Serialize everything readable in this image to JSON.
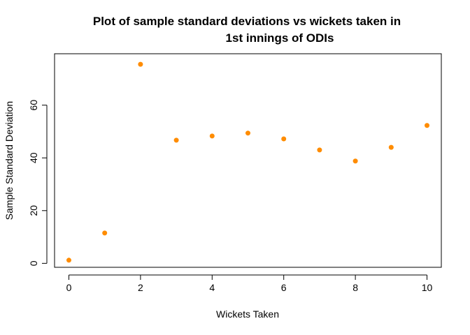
{
  "chart_data": {
    "type": "scatter",
    "title_lines": [
      "Plot of sample standard deviations vs wickets taken in",
      "1st innings of ODIs"
    ],
    "xlabel": "Wickets Taken",
    "ylabel": "Sample Standard Deviation",
    "xlim": [
      -0.4,
      10.4
    ],
    "ylim": [
      -1.5,
      79.5
    ],
    "x_ticks": [
      0,
      2,
      4,
      6,
      8,
      10
    ],
    "y_ticks": [
      0,
      20,
      40,
      60
    ],
    "x_tick_labels": [
      "0",
      "2",
      "4",
      "6",
      "8",
      "10"
    ],
    "y_tick_labels": [
      "0",
      "20",
      "40",
      "60"
    ],
    "grid": false,
    "point_color": "#FF8C00",
    "points": [
      {
        "x": 0,
        "y": 1.2
      },
      {
        "x": 1,
        "y": 11.5
      },
      {
        "x": 2,
        "y": 75.5
      },
      {
        "x": 3,
        "y": 46.7
      },
      {
        "x": 4,
        "y": 48.3
      },
      {
        "x": 5,
        "y": 49.4
      },
      {
        "x": 6,
        "y": 47.2
      },
      {
        "x": 7,
        "y": 43.0
      },
      {
        "x": 8,
        "y": 38.8
      },
      {
        "x": 9,
        "y": 44.0
      },
      {
        "x": 10,
        "y": 52.3
      }
    ]
  }
}
